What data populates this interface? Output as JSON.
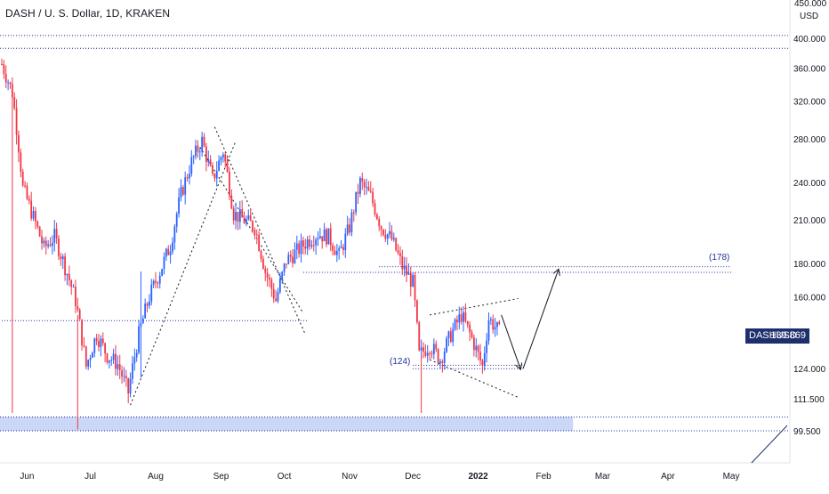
{
  "header": {
    "title": "DASH / U. S. Dollar, 1D, KRAKEN"
  },
  "price_axis": {
    "currency": "USD",
    "top_partial_label": "450.000"
  },
  "last_price": {
    "symbol": "DASHUSD",
    "value": "139.869"
  },
  "annotations": {
    "upper_level": "(178)",
    "lower_level": "(124)"
  },
  "colors": {
    "up": "#2962ff",
    "down": "#f23645",
    "level_line": "#1e2f9d",
    "zone_fill": "#c5d3f6",
    "badge": "#1e2f6d",
    "text": "#131722"
  },
  "chart_data": {
    "type": "candlestick",
    "title": "DASH / U. S. Dollar, 1D, KRAKEN",
    "y_scale": "log",
    "y_ticks": [
      "400.000",
      "360.000",
      "320.000",
      "280.000",
      "240.000",
      "210.000",
      "180.000",
      "160.000",
      "124.000",
      "111.500",
      "99.500"
    ],
    "x_ticks": [
      "Jun",
      "Jul",
      "Aug",
      "Sep",
      "Oct",
      "Nov",
      "Dec",
      "2022",
      "Feb",
      "Mar",
      "Apr",
      "May"
    ],
    "horizontal_levels": [
      404,
      386,
      178,
      124
    ],
    "support_zone": [
      99.5,
      104.5
    ],
    "close_series": [
      [
        "2021-05-20",
        365
      ],
      [
        "2021-05-25",
        330
      ],
      [
        "2021-05-30",
        235
      ],
      [
        "2021-06-04",
        212
      ],
      [
        "2021-06-09",
        190
      ],
      [
        "2021-06-14",
        198
      ],
      [
        "2021-06-19",
        178
      ],
      [
        "2021-06-24",
        158
      ],
      [
        "2021-06-29",
        125
      ],
      [
        "2021-07-04",
        140
      ],
      [
        "2021-07-09",
        130
      ],
      [
        "2021-07-14",
        126
      ],
      [
        "2021-07-19",
        114
      ],
      [
        "2021-07-24",
        140
      ],
      [
        "2021-07-29",
        160
      ],
      [
        "2021-08-03",
        175
      ],
      [
        "2021-08-08",
        192
      ],
      [
        "2021-08-13",
        230
      ],
      [
        "2021-08-18",
        258
      ],
      [
        "2021-08-23",
        278
      ],
      [
        "2021-08-28",
        242
      ],
      [
        "2021-09-02",
        268
      ],
      [
        "2021-09-07",
        215
      ],
      [
        "2021-09-12",
        210
      ],
      [
        "2021-09-17",
        205
      ],
      [
        "2021-09-22",
        175
      ],
      [
        "2021-09-27",
        158
      ],
      [
        "2021-10-02",
        182
      ],
      [
        "2021-10-07",
        188
      ],
      [
        "2021-10-12",
        195
      ],
      [
        "2021-10-17",
        200
      ],
      [
        "2021-10-22",
        198
      ],
      [
        "2021-10-27",
        185
      ],
      [
        "2021-11-01",
        205
      ],
      [
        "2021-11-06",
        240
      ],
      [
        "2021-11-11",
        228
      ],
      [
        "2021-11-16",
        205
      ],
      [
        "2021-11-21",
        196
      ],
      [
        "2021-11-26",
        178
      ],
      [
        "2021-12-01",
        168
      ],
      [
        "2021-12-04",
        130
      ],
      [
        "2021-12-09",
        135
      ],
      [
        "2021-12-14",
        128
      ],
      [
        "2021-12-19",
        140
      ],
      [
        "2021-12-24",
        150
      ],
      [
        "2021-12-29",
        138
      ],
      [
        "2022-01-03",
        125
      ],
      [
        "2022-01-06",
        148
      ],
      [
        "2022-01-09",
        144
      ],
      [
        "2022-01-12",
        139.869
      ]
    ],
    "projection": [
      [
        "2022-01-12",
        150
      ],
      [
        "2022-01-21",
        124
      ],
      [
        "2022-02-08",
        176
      ]
    ]
  }
}
